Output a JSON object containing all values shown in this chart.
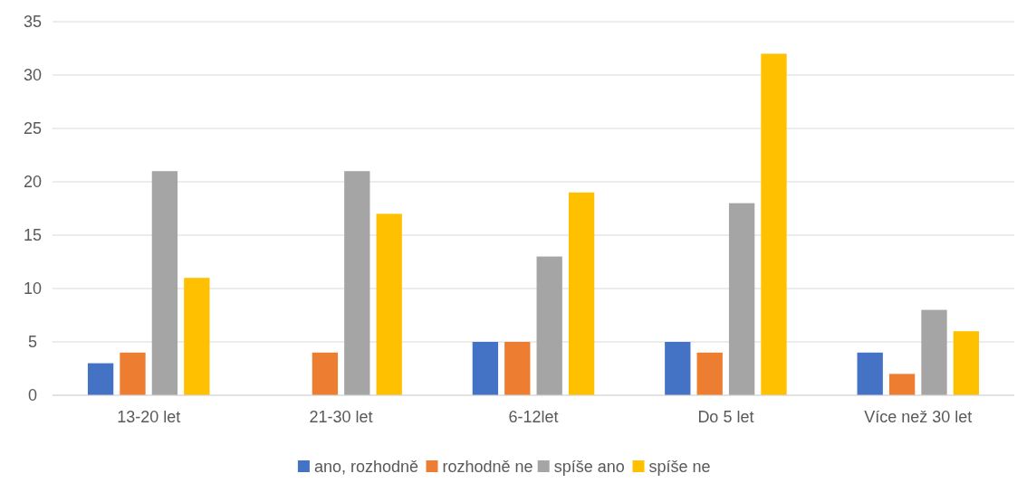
{
  "chart_data": {
    "type": "bar",
    "categories": [
      "13-20 let",
      "21-30 let",
      "6-12let",
      "Do 5 let",
      "Více než 30 let"
    ],
    "series": [
      {
        "name": "ano, rozhodně",
        "color": "#4472c4",
        "values": [
          3,
          0,
          5,
          5,
          4
        ]
      },
      {
        "name": "rozhodně ne",
        "color": "#ed7d31",
        "values": [
          4,
          4,
          5,
          4,
          2
        ]
      },
      {
        "name": "spíše ano",
        "color": "#a5a5a5",
        "values": [
          21,
          21,
          13,
          18,
          8
        ]
      },
      {
        "name": "spíše ne",
        "color": "#ffc000",
        "values": [
          11,
          17,
          19,
          32,
          6
        ]
      }
    ],
    "ylim": [
      0,
      35
    ],
    "yticks": [
      0,
      5,
      10,
      15,
      20,
      25,
      30,
      35
    ],
    "grid": "y",
    "legend": "bottom"
  }
}
